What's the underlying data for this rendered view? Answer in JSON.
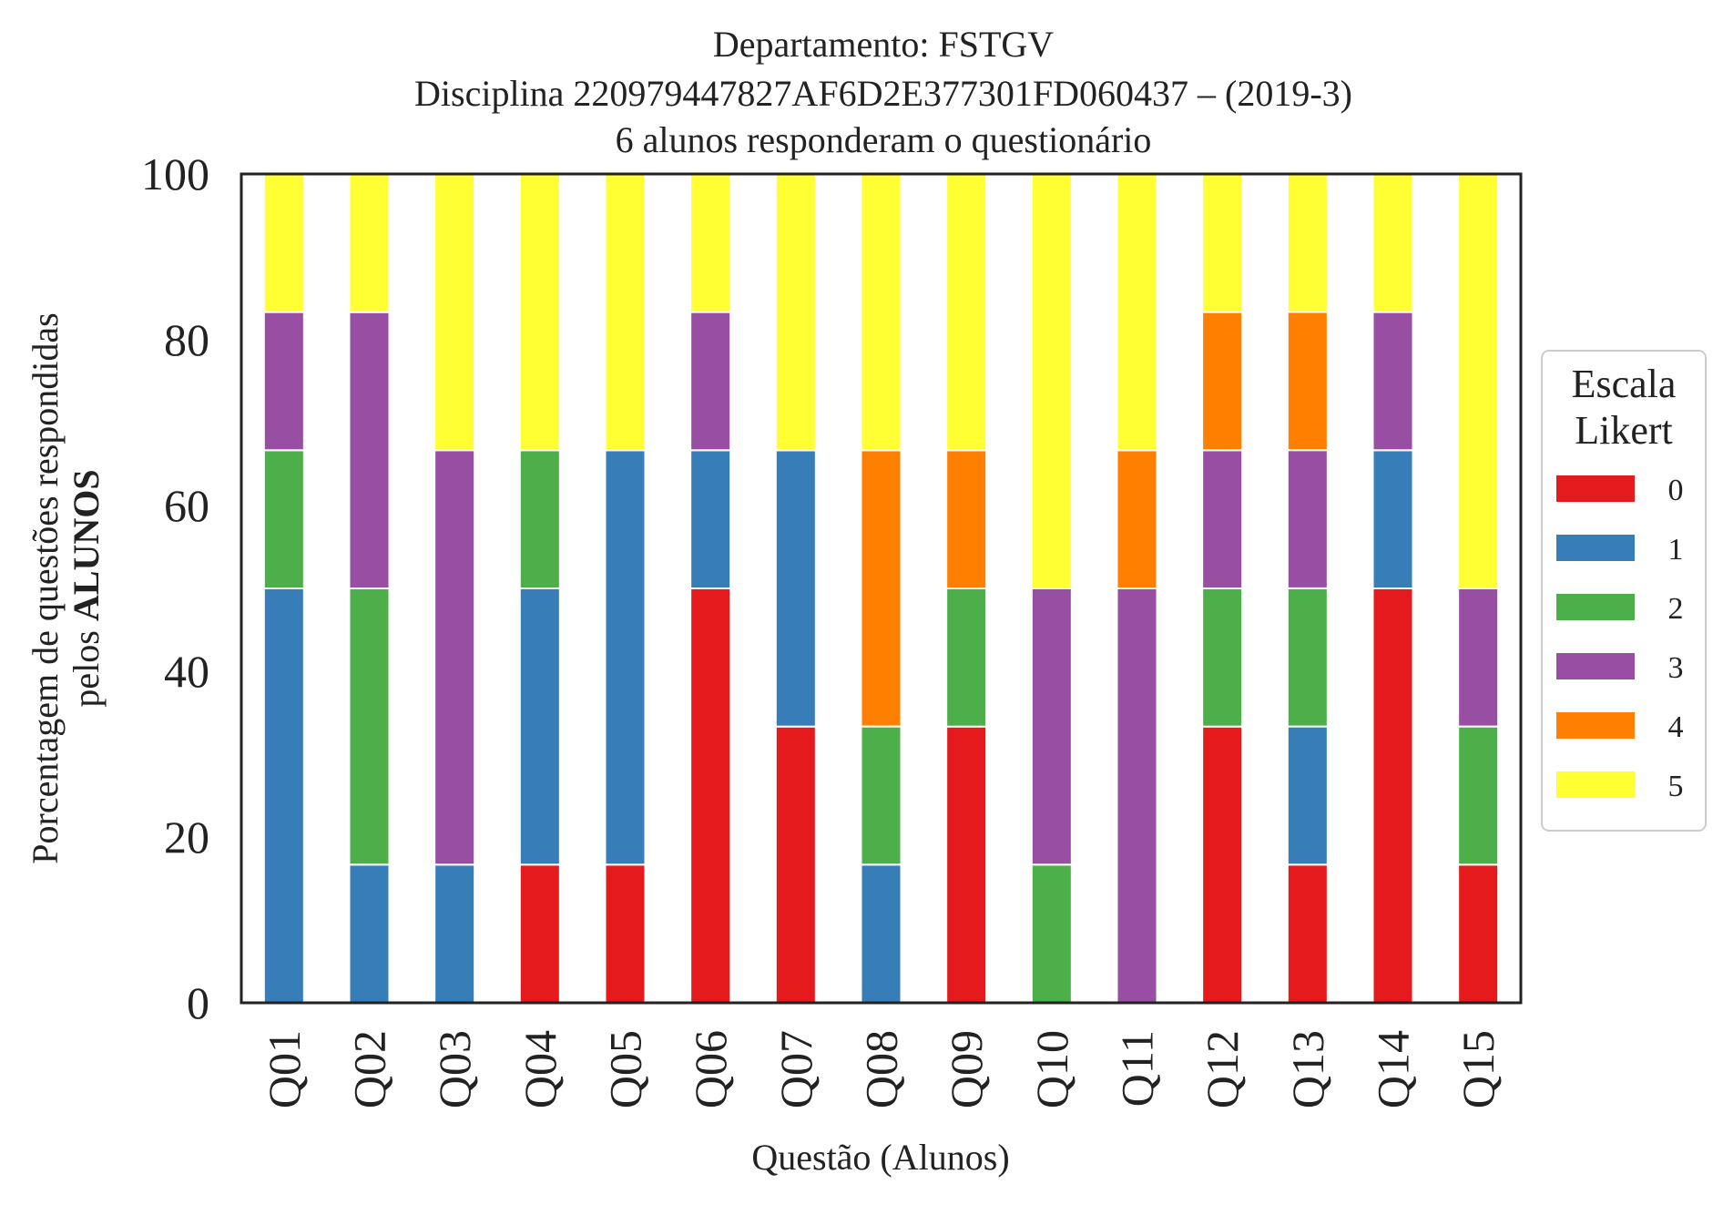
{
  "chart_data": {
    "type": "bar",
    "stacked": true,
    "title_lines": [
      "Departamento: FSTGV",
      "Disciplina 220979447827AF6D2E377301FD060437 – (2019-3)",
      "6 alunos responderam o questionário"
    ],
    "xlabel": "Questão (Alunos)",
    "ylabel_line1": "Porcentagem de questões respondidas",
    "ylabel_line2_prefix": "pelos ",
    "ylabel_line2_bold": "ALUNOS",
    "ylim": [
      0,
      100
    ],
    "yticks": [
      "0",
      "20",
      "40",
      "60",
      "80",
      "100"
    ],
    "categories": [
      "Q01",
      "Q02",
      "Q03",
      "Q04",
      "Q05",
      "Q06",
      "Q07",
      "Q08",
      "Q09",
      "Q10",
      "Q11",
      "Q12",
      "Q13",
      "Q14",
      "Q15"
    ],
    "legend": {
      "title_lines": [
        "Escala",
        "Likert"
      ],
      "position": "right"
    },
    "series": [
      {
        "name": "0",
        "color": "#e41a1c",
        "values": [
          0,
          0,
          0,
          16.67,
          16.67,
          50,
          33.33,
          0,
          33.33,
          0,
          0,
          33.33,
          16.67,
          50,
          16.67
        ]
      },
      {
        "name": "1",
        "color": "#377eb8",
        "values": [
          50,
          16.67,
          16.67,
          33.33,
          50,
          16.67,
          33.33,
          16.67,
          0,
          0,
          0,
          0,
          16.67,
          16.67,
          0
        ]
      },
      {
        "name": "2",
        "color": "#4daf4a",
        "values": [
          16.67,
          33.33,
          0,
          16.67,
          0,
          0,
          0,
          16.67,
          16.67,
          16.67,
          0,
          16.67,
          16.67,
          0,
          16.67
        ]
      },
      {
        "name": "3",
        "color": "#984ea3",
        "values": [
          16.67,
          33.33,
          50,
          0,
          0,
          16.67,
          0,
          0,
          0,
          33.33,
          50,
          16.67,
          16.67,
          16.67,
          16.67
        ]
      },
      {
        "name": "4",
        "color": "#ff7f00",
        "values": [
          0,
          0,
          0,
          0,
          0,
          0,
          0,
          33.33,
          16.67,
          0,
          16.67,
          16.67,
          16.67,
          0,
          0
        ]
      },
      {
        "name": "5",
        "color": "#ffff33",
        "values": [
          16.67,
          16.67,
          33.33,
          33.33,
          33.33,
          16.67,
          33.33,
          33.33,
          33.33,
          50,
          33.33,
          16.67,
          16.67,
          16.67,
          50
        ]
      }
    ]
  }
}
